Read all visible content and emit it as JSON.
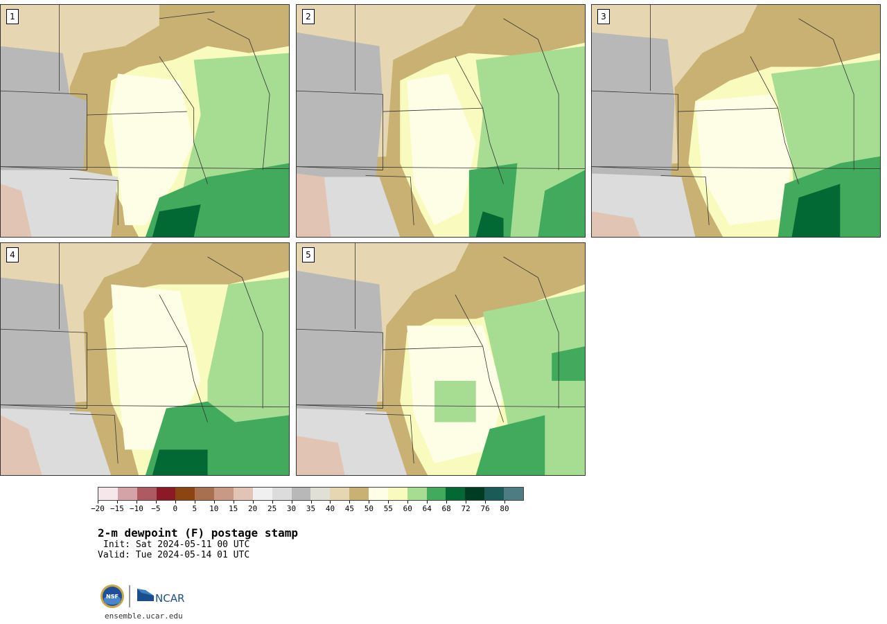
{
  "panels": [
    {
      "label": "1"
    },
    {
      "label": "2"
    },
    {
      "label": "3"
    },
    {
      "label": "4"
    },
    {
      "label": "5"
    }
  ],
  "colorbar": {
    "colors": [
      "#f6e8ea",
      "#d4a3a8",
      "#ad5a63",
      "#8b1a26",
      "#8b4513",
      "#a8704f",
      "#c89a83",
      "#e2c4b4",
      "#f0f0f0",
      "#dcdcdc",
      "#b8b8b8",
      "#e0e0d6",
      "#e6d7b2",
      "#c8b173",
      "#fefee6",
      "#f8fbbd",
      "#a7dc93",
      "#41aa5c",
      "#026834",
      "#003c22",
      "#1b5b57",
      "#4d7c82"
    ],
    "tick_labels": [
      "−20",
      "−15",
      "−10",
      "−5",
      "0",
      "5",
      "10",
      "15",
      "20",
      "25",
      "30",
      "35",
      "40",
      "45",
      "50",
      "55",
      "60",
      "64",
      "68",
      "72",
      "76",
      "80"
    ]
  },
  "title": "2-m dewpoint (F) postage stamp",
  "init": "Init: Sat 2024-05-11 00 UTC",
  "valid": "Valid: Tue 2024-05-14 01 UTC",
  "logos": {
    "nsf_text": "NSF",
    "ncar_text": "NCAR"
  },
  "footer_url": "ensemble.ucar.edu"
}
